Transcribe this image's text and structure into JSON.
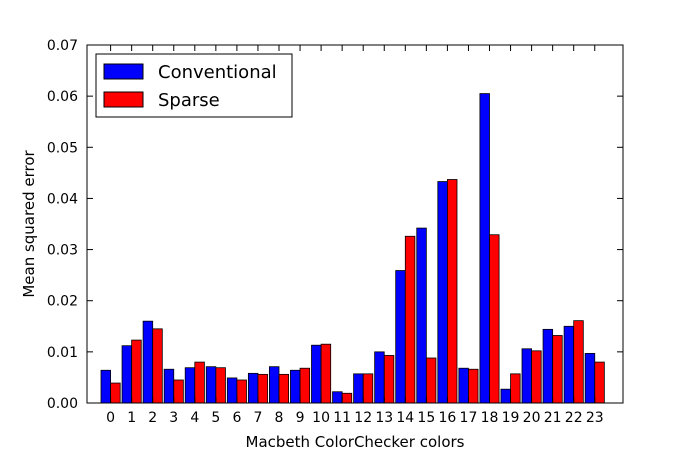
{
  "chart_data": {
    "type": "bar",
    "title": "",
    "xlabel": "Macbeth ColorChecker colors",
    "ylabel": "Mean squared error",
    "ylim": [
      0,
      0.07
    ],
    "yticks": [
      "0.00",
      "0.01",
      "0.02",
      "0.03",
      "0.04",
      "0.05",
      "0.06",
      "0.07"
    ],
    "categories": [
      "0",
      "1",
      "2",
      "3",
      "4",
      "5",
      "6",
      "7",
      "8",
      "9",
      "10",
      "11",
      "12",
      "13",
      "14",
      "15",
      "16",
      "17",
      "18",
      "19",
      "20",
      "21",
      "22",
      "23"
    ],
    "grid": false,
    "legend": "top-left",
    "series": [
      {
        "name": "Conventional",
        "color": "#0000ff",
        "values": [
          0.0064,
          0.0112,
          0.016,
          0.0066,
          0.0069,
          0.0071,
          0.0049,
          0.0058,
          0.0071,
          0.0064,
          0.0113,
          0.0022,
          0.0057,
          0.01,
          0.0259,
          0.0342,
          0.0433,
          0.0068,
          0.0605,
          0.0027,
          0.0106,
          0.0144,
          0.015,
          0.0097
        ]
      },
      {
        "name": "Sparse",
        "color": "#ff0000",
        "values": [
          0.0039,
          0.0123,
          0.0145,
          0.0045,
          0.008,
          0.0069,
          0.0045,
          0.0056,
          0.0056,
          0.0068,
          0.0115,
          0.0019,
          0.0057,
          0.0093,
          0.0326,
          0.0088,
          0.0437,
          0.0066,
          0.0329,
          0.0057,
          0.0102,
          0.0132,
          0.0161,
          0.008
        ]
      }
    ]
  }
}
